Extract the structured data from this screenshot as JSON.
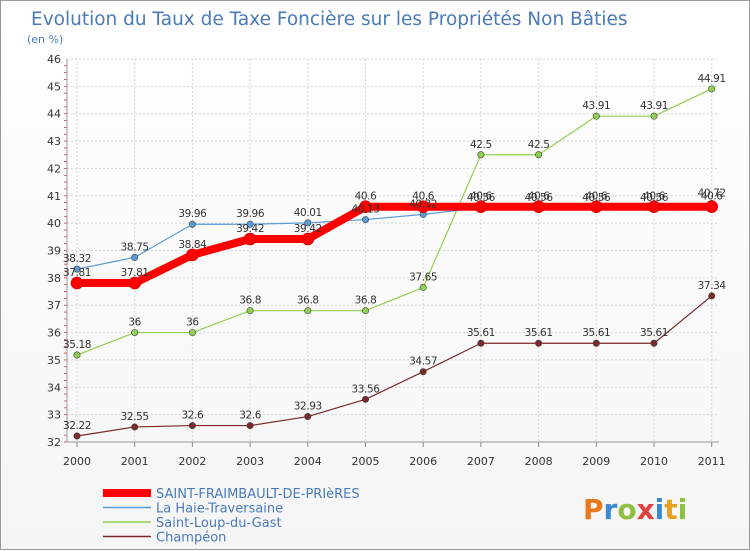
{
  "chart_data": {
    "type": "line",
    "title": "Evolution du Taux de Taxe Foncière sur les Propriétés Non Bâties",
    "ylabel": "(en %)",
    "xlabel": "",
    "x": [
      "2000",
      "2001",
      "2002",
      "2003",
      "2004",
      "2005",
      "2006",
      "2007",
      "2008",
      "2009",
      "2010",
      "2011"
    ],
    "ylim": [
      32,
      46
    ],
    "yticks": [
      "32",
      "33",
      "34",
      "35",
      "36",
      "37",
      "38",
      "39",
      "40",
      "41",
      "42",
      "43",
      "44",
      "45",
      "46"
    ],
    "grid": true,
    "legend_position": "bottom-left",
    "series": [
      {
        "name": "SAINT-FRAIMBAULT-DE-PRIèRES",
        "color": "#ff0000",
        "values": [
          37.81,
          37.81,
          38.84,
          39.42,
          39.42,
          40.6,
          40.6,
          40.6,
          40.6,
          40.6,
          40.6,
          40.6
        ],
        "labels": [
          "37.81",
          "37.81",
          "38.84",
          "39.42",
          "39.42",
          "40.6",
          "40.6",
          "40.6",
          "40.6",
          "40.6",
          "40.6",
          "40.6"
        ]
      },
      {
        "name": "La Haie-Traversaine",
        "color": "#5b9bd5",
        "values": [
          38.32,
          38.75,
          39.96,
          39.96,
          40.01,
          40.13,
          40.32,
          40.56,
          40.56,
          40.56,
          40.56,
          40.72
        ],
        "labels": [
          "38.32",
          "38.75",
          "39.96",
          "39.96",
          "40.01",
          "40.13",
          "40.32",
          "40.56",
          "40.56",
          "40.56",
          "40.56",
          "40.72"
        ]
      },
      {
        "name": "Saint-Loup-du-Gast",
        "color": "#90d050",
        "values": [
          35.18,
          36,
          36,
          36.8,
          36.8,
          36.8,
          37.65,
          42.5,
          42.5,
          43.91,
          43.91,
          44.91
        ],
        "labels": [
          "35.18",
          "36",
          "36",
          "36.8",
          "36.8",
          "36.8",
          "37.65",
          "42.5",
          "42.5",
          "43.91",
          "43.91",
          "44.91"
        ]
      },
      {
        "name": "Champéon",
        "color": "#7a2a2a",
        "values": [
          32.22,
          32.55,
          32.6,
          32.6,
          32.93,
          33.56,
          34.57,
          35.61,
          35.61,
          35.61,
          35.61,
          37.34
        ],
        "labels": [
          "32.22",
          "32.55",
          "32.6",
          "32.6",
          "32.93",
          "33.56",
          "34.57",
          "35.61",
          "35.61",
          "35.61",
          "35.61",
          "37.34"
        ]
      }
    ]
  },
  "logo": {
    "letters": [
      "P",
      "r",
      "o",
      "x",
      "i",
      "t",
      "i"
    ],
    "colors": [
      "#e8781e",
      "#3a8ad0",
      "#90c040",
      "#e04040",
      "#3a8ad0",
      "#e8a020",
      "#90c040"
    ]
  }
}
